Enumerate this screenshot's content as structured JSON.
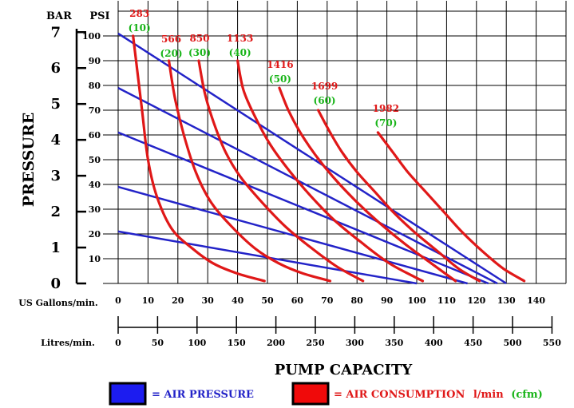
{
  "chart_data": {
    "type": "line",
    "title": "",
    "xlabel": "PUMP CAPACITY",
    "ylabel": "PRESSURE",
    "x_unit_label": "US Gallons/min.",
    "x2_unit_label": "Litres/min.",
    "y_left_unit": "BAR",
    "y_right_unit": "PSI",
    "xlim": [
      0,
      140
    ],
    "ylim": [
      0,
      100
    ],
    "x_ticks": [
      "0",
      "10",
      "20",
      "30",
      "40",
      "50",
      "60",
      "70",
      "80",
      "90",
      "100",
      "110",
      "120",
      "130",
      "140"
    ],
    "x2_ticks": [
      "0",
      "50",
      "100",
      "150",
      "200",
      "250",
      "300",
      "350",
      "400",
      "450",
      "500",
      "550"
    ],
    "psi_ticks": [
      "0",
      "10",
      "20",
      "30",
      "40",
      "50",
      "60",
      "70",
      "80",
      "90",
      "100"
    ],
    "bar_ticks": [
      "0",
      "1",
      "2",
      "3",
      "4",
      "5",
      "6",
      "7"
    ],
    "grid": true,
    "colors": {
      "air_pressure": "#2323c8",
      "air_consumption": "#e01818",
      "cfm_label": "#18b418",
      "grid": "#000000"
    },
    "air_pressure_series": [
      {
        "points": [
          [
            0,
            101
          ],
          [
            130,
            0
          ]
        ]
      },
      {
        "points": [
          [
            0,
            79
          ],
          [
            127,
            0
          ]
        ]
      },
      {
        "points": [
          [
            0,
            61
          ],
          [
            124,
            0
          ]
        ]
      },
      {
        "points": [
          [
            0,
            39
          ],
          [
            117,
            0
          ]
        ]
      },
      {
        "points": [
          [
            0,
            21
          ],
          [
            100,
            0
          ]
        ]
      }
    ],
    "air_consumption_series": [
      {
        "label_lmin": "283",
        "label_cfm": "(10)",
        "points": [
          [
            5,
            100
          ],
          [
            6,
            90
          ],
          [
            8,
            70
          ],
          [
            10,
            50
          ],
          [
            13,
            35
          ],
          [
            18,
            22
          ],
          [
            25,
            14
          ],
          [
            32,
            8
          ],
          [
            40,
            4
          ],
          [
            49,
            1
          ]
        ]
      },
      {
        "label_lmin": "566",
        "label_cfm": "(20)",
        "points": [
          [
            17,
            90
          ],
          [
            19,
            75
          ],
          [
            22,
            60
          ],
          [
            26,
            45
          ],
          [
            31,
            33
          ],
          [
            38,
            23
          ],
          [
            46,
            14
          ],
          [
            54,
            8
          ],
          [
            62,
            4
          ],
          [
            71,
            1
          ]
        ]
      },
      {
        "label_lmin": "850",
        "label_cfm": "(30)",
        "points": [
          [
            27,
            90
          ],
          [
            29,
            77
          ],
          [
            32,
            65
          ],
          [
            36,
            53
          ],
          [
            41,
            43
          ],
          [
            48,
            33
          ],
          [
            56,
            23
          ],
          [
            64,
            15
          ],
          [
            73,
            7
          ],
          [
            82,
            1
          ]
        ]
      },
      {
        "label_lmin": "1133",
        "label_cfm": "(40)",
        "points": [
          [
            40,
            90
          ],
          [
            42,
            78
          ],
          [
            46,
            67
          ],
          [
            51,
            56
          ],
          [
            57,
            46
          ],
          [
            64,
            36
          ],
          [
            72,
            26
          ],
          [
            81,
            17
          ],
          [
            91,
            8
          ],
          [
            102,
            1
          ]
        ]
      },
      {
        "label_lmin": "1416",
        "label_cfm": "(50)",
        "points": [
          [
            54,
            79
          ],
          [
            57,
            70
          ],
          [
            61,
            61
          ],
          [
            66,
            52
          ],
          [
            72,
            43
          ],
          [
            79,
            34
          ],
          [
            87,
            25
          ],
          [
            96,
            16
          ],
          [
            105,
            8
          ],
          [
            113,
            1
          ]
        ]
      },
      {
        "label_lmin": "1699",
        "label_cfm": "(60)",
        "points": [
          [
            67,
            70
          ],
          [
            71,
            61
          ],
          [
            75,
            53
          ],
          [
            80,
            45
          ],
          [
            86,
            37
          ],
          [
            92,
            29
          ],
          [
            99,
            21
          ],
          [
            107,
            13
          ],
          [
            114,
            6
          ],
          [
            121,
            1
          ]
        ]
      },
      {
        "label_lmin": "1982",
        "label_cfm": "(70)",
        "points": [
          [
            87,
            61
          ],
          [
            92,
            53
          ],
          [
            97,
            45
          ],
          [
            103,
            37
          ],
          [
            109,
            29
          ],
          [
            115,
            21
          ],
          [
            122,
            13
          ],
          [
            129,
            6
          ],
          [
            136,
            1
          ]
        ]
      }
    ],
    "legend": {
      "position": "bottom",
      "pressure_label": "= AIR PRESSURE",
      "consumption_label": "= AIR CONSUMPTION",
      "consumption_units": "l/min",
      "consumption_cfm": "(cfm)"
    }
  }
}
